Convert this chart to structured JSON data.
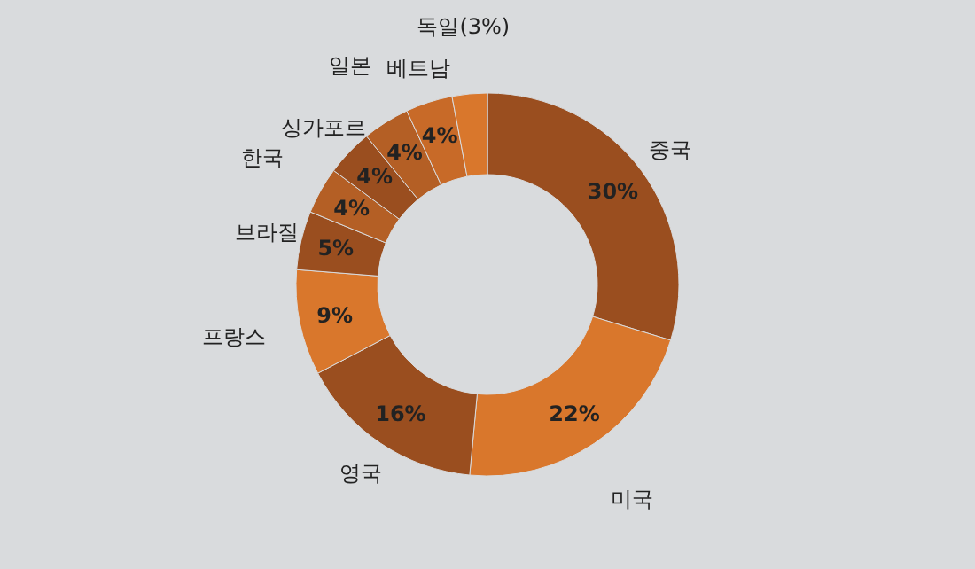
{
  "chart_data": {
    "type": "donut",
    "categories": [
      "중국",
      "미국",
      "영국",
      "프랑스",
      "브라질",
      "한국",
      "싱가포르",
      "일본",
      "베트남",
      "독일(3%)"
    ],
    "values": [
      30,
      22,
      16,
      9,
      5,
      4,
      4,
      4,
      4,
      3
    ],
    "value_labels": [
      "30%",
      "22%",
      "16%",
      "9%",
      "5%",
      "4%",
      "4%",
      "4%",
      "4%",
      null
    ],
    "colors": [
      "#9a4e1f",
      "#d9772c",
      "#9a4e1f",
      "#d9772c",
      "#9a4e1f",
      "#b45f25",
      "#9a4e1f",
      "#b45f25",
      "#c86a28",
      "#d9772c"
    ]
  }
}
